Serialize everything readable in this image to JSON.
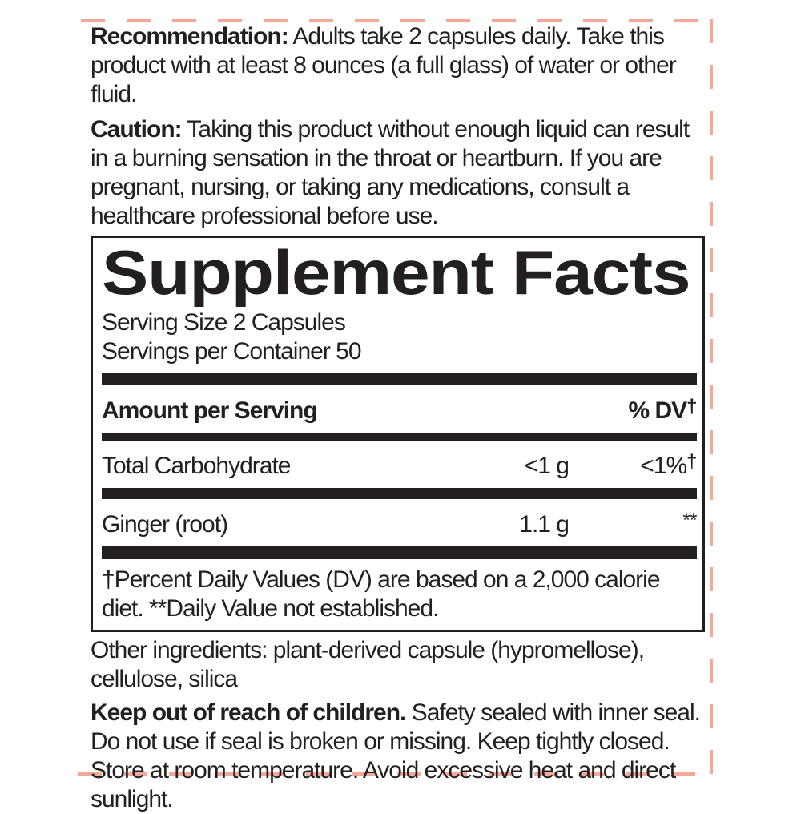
{
  "cutline": {
    "color": "#f8a795"
  },
  "ink_color": "#231f20",
  "directions": {
    "recommendation_label": "Recommendation:",
    "recommendation_text": " Adults take 2 capsules daily. Take this product with at least 8 ounces (a full glass) of water or other fluid.",
    "caution_label": "Caution:",
    "caution_text": " Taking this product without enough liquid can result in a burning sensation in the throat or heartburn. If you are pregnant, nursing, or taking any medications, consult a healthcare professional before use."
  },
  "supplement_facts": {
    "title": "Supplement Facts",
    "serving_size": "Serving Size 2 Capsules",
    "servings_per_container": "Servings per Container 50",
    "header": {
      "amount_label": "Amount per Serving",
      "dv_label": "% DV",
      "dv_mark": "†"
    },
    "rows": [
      {
        "name": "Total Carbohydrate",
        "amount": "<1 g",
        "dv": "<1%",
        "dv_mark": "†"
      },
      {
        "name": "Ginger (root)",
        "amount": "1.1 g",
        "dv": "",
        "dv_mark": "**"
      }
    ],
    "footnote": "†Percent Daily Values (DV) are based on a 2,000 calorie diet. **Daily Value not established."
  },
  "other_ingredients": "Other ingredients: plant-derived capsule (hypromellose), cellulose, silica",
  "storage": {
    "keep_label": "Keep out of reach of children.",
    "keep_text": " Safety sealed with inner seal. Do not use if seal is broken or missing. Keep tightly closed. Store at room temperature. Avoid excessive heat and direct sunlight."
  }
}
